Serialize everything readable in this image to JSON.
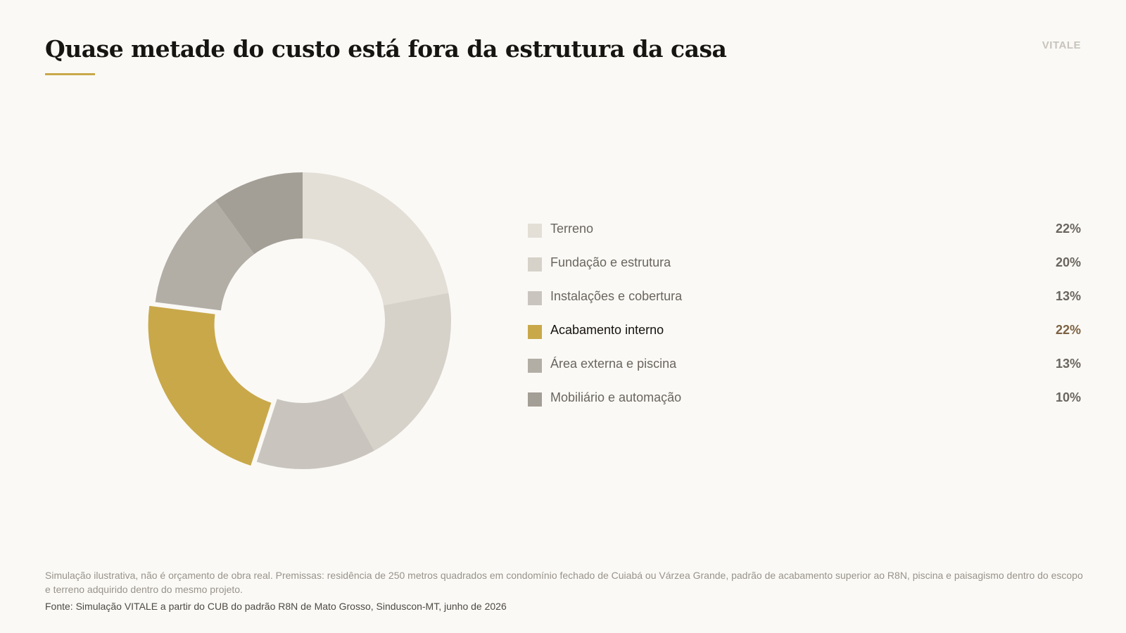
{
  "title": "Quase metade do custo está fora da estrutura da casa",
  "brand": "VITALE",
  "chart_data": {
    "type": "pie",
    "variant": "donut",
    "legend_position": "right",
    "highlight_index": 3,
    "slices": [
      {
        "label": "Terreno",
        "value": 22,
        "display": "22%",
        "color": "#e3dfd7"
      },
      {
        "label": "Fundação e estrutura",
        "value": 20,
        "display": "20%",
        "color": "#d6d2ca"
      },
      {
        "label": "Instalações e cobertura",
        "value": 13,
        "display": "13%",
        "color": "#c9c5be"
      },
      {
        "label": "Acabamento interno",
        "value": 22,
        "display": "22%",
        "color": "#c9a84a"
      },
      {
        "label": "Área externa e piscina",
        "value": 13,
        "display": "13%",
        "color": "#b2aea6"
      },
      {
        "label": "Mobiliário e automação",
        "value": 10,
        "display": "10%",
        "color": "#a39e96"
      }
    ]
  },
  "footer": {
    "note": "Simulação ilustrativa, não é orçamento de obra real. Premissas: residência de 250 metros quadrados em condomínio fechado de Cuiabá ou Várzea Grande, padrão de acabamento superior ao R8N, piscina e paisagismo dentro do escopo e terreno adquirido dentro do mesmo projeto.",
    "source": "Fonte: Simulação VITALE a partir do CUB do padrão R8N de Mato Grosso, Sinduscon-MT, junho de 2026"
  }
}
